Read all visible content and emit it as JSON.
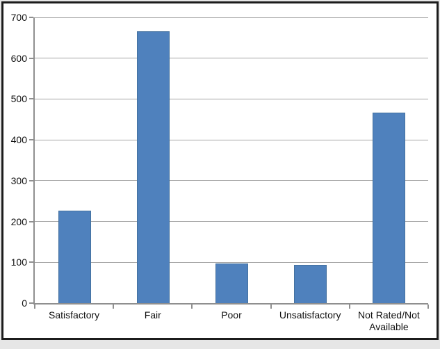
{
  "chart_data": {
    "type": "bar",
    "title": "",
    "xlabel": "",
    "ylabel": "",
    "categories": [
      "Satisfactory",
      "Fair",
      "Poor",
      "Unsatisfactory",
      "Not Rated/Not Available"
    ],
    "values": [
      225,
      665,
      95,
      92,
      465
    ],
    "ylim": [
      0,
      700
    ],
    "yticks": [
      0,
      100,
      200,
      300,
      400,
      500,
      600,
      700
    ],
    "grid": true,
    "legend": "none",
    "bar_color": "#4f81bd",
    "bar_border_color": "#44719f",
    "gridline_color": "#a3a3a3",
    "axis_color": "#8f8f8f",
    "frame_border_color": "#1c1c1c",
    "background_color": "#ffffff",
    "outer_margin_color": "#e6e6e6"
  }
}
